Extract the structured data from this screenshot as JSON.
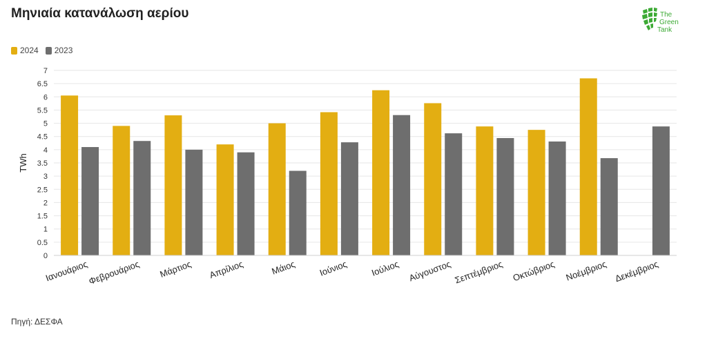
{
  "header": {
    "title": "Μηνιαία κατανάλωση αερίου"
  },
  "logo": {
    "line1": "The",
    "line2": "Green",
    "line3": "Tank"
  },
  "footer": {
    "source": "Πηγή: ΔΕΣΦΑ"
  },
  "colors": {
    "series_2024": "#E3AE12",
    "series_2023": "#6E6E6E",
    "logo_green": "#3DAA35"
  },
  "chart_data": {
    "type": "bar",
    "title": "Μηνιαία κατανάλωση αερίου",
    "xlabel": "",
    "ylabel": "TWh",
    "ylim": [
      0,
      7
    ],
    "yticks": [
      "0",
      "0.5",
      "1",
      "1.5",
      "2",
      "2.5",
      "3",
      "3.5",
      "4",
      "4.5",
      "5",
      "5.5",
      "6",
      "6.5",
      "7"
    ],
    "legend": "top-left",
    "grid": true,
    "categories": [
      "Ιανουάριος",
      "Φεβρουάριος",
      "Μάρτιος",
      "Απρίλιος",
      "Μάιος",
      "Ιούνιος",
      "Ιούλιος",
      "Αύγουστος",
      "Σεπτέμβριος",
      "Οκτώβριος",
      "Νοέμβριος",
      "Δεκέμβριος"
    ],
    "series": [
      {
        "name": "2024",
        "color": "#E3AE12",
        "values": [
          6.05,
          4.9,
          5.3,
          4.2,
          5.0,
          5.42,
          6.25,
          5.76,
          4.88,
          4.75,
          6.7,
          null
        ]
      },
      {
        "name": "2023",
        "color": "#6E6E6E",
        "values": [
          4.1,
          4.33,
          4.0,
          3.9,
          3.2,
          4.28,
          5.31,
          4.62,
          4.44,
          4.31,
          3.68,
          4.88
        ]
      }
    ]
  }
}
